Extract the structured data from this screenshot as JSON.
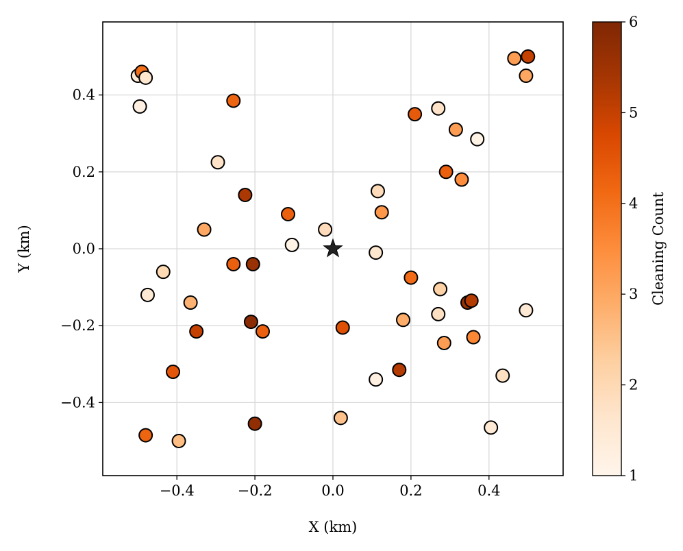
{
  "chart_data": {
    "type": "scatter",
    "title": "",
    "xlabel": "X (km)",
    "ylabel": "Y (km)",
    "xlim": [
      -0.59,
      0.59
    ],
    "ylim": [
      -0.59,
      0.59
    ],
    "xticks": [
      -0.4,
      -0.2,
      0.0,
      0.2,
      0.4
    ],
    "yticks": [
      -0.4,
      -0.2,
      0.0,
      0.2,
      0.4
    ],
    "xtick_labels": [
      "−0.4",
      "−0.2",
      "0.0",
      "0.2",
      "0.4"
    ],
    "ytick_labels": [
      "−0.4",
      "−0.2",
      "0.0",
      "0.2",
      "0.4"
    ],
    "grid": true,
    "colormap": "Oranges",
    "colormap_stops": [
      "#fff5eb",
      "#fee6ce",
      "#fdd0a2",
      "#fdae6b",
      "#fd8d3c",
      "#f16913",
      "#d94801",
      "#a63603",
      "#7f2704"
    ],
    "colorbar": {
      "label": "Cleaning Count",
      "min": 1,
      "max": 6,
      "ticks": [
        1,
        2,
        3,
        4,
        5,
        6
      ],
      "tick_labels": [
        "1",
        "2",
        "3",
        "4",
        "5",
        "6"
      ]
    },
    "center_marker": {
      "x": 0.0,
      "y": 0.0,
      "symbol": "star",
      "color": "#222222"
    },
    "points": [
      {
        "x": -0.5,
        "y": 0.45,
        "count": 1.5
      },
      {
        "x": -0.49,
        "y": 0.46,
        "count": 4.0
      },
      {
        "x": -0.48,
        "y": 0.445,
        "count": 1.6
      },
      {
        "x": -0.495,
        "y": 0.37,
        "count": 1.2
      },
      {
        "x": -0.255,
        "y": 0.385,
        "count": 4.2
      },
      {
        "x": -0.295,
        "y": 0.225,
        "count": 1.7
      },
      {
        "x": -0.225,
        "y": 0.14,
        "count": 5.3
      },
      {
        "x": -0.115,
        "y": 0.09,
        "count": 4.3
      },
      {
        "x": -0.33,
        "y": 0.05,
        "count": 3.0
      },
      {
        "x": -0.255,
        "y": -0.04,
        "count": 4.3
      },
      {
        "x": -0.205,
        "y": -0.04,
        "count": 5.6
      },
      {
        "x": -0.435,
        "y": -0.06,
        "count": 2.0
      },
      {
        "x": -0.475,
        "y": -0.12,
        "count": 1.5
      },
      {
        "x": -0.365,
        "y": -0.14,
        "count": 2.8
      },
      {
        "x": -0.35,
        "y": -0.215,
        "count": 5.0
      },
      {
        "x": -0.21,
        "y": -0.19,
        "count": 5.8
      },
      {
        "x": -0.18,
        "y": -0.215,
        "count": 4.3
      },
      {
        "x": -0.41,
        "y": -0.32,
        "count": 4.5
      },
      {
        "x": -0.2,
        "y": -0.455,
        "count": 5.7
      },
      {
        "x": -0.48,
        "y": -0.485,
        "count": 4.2
      },
      {
        "x": -0.395,
        "y": -0.5,
        "count": 2.6
      },
      {
        "x": -0.105,
        "y": 0.01,
        "count": 1.1
      },
      {
        "x": -0.02,
        "y": 0.05,
        "count": 1.9
      },
      {
        "x": 0.115,
        "y": 0.15,
        "count": 1.9
      },
      {
        "x": 0.125,
        "y": 0.095,
        "count": 3.3
      },
      {
        "x": 0.11,
        "y": -0.01,
        "count": 1.6
      },
      {
        "x": 0.2,
        "y": -0.075,
        "count": 4.1
      },
      {
        "x": 0.025,
        "y": -0.205,
        "count": 4.6
      },
      {
        "x": 0.18,
        "y": -0.185,
        "count": 2.9
      },
      {
        "x": 0.11,
        "y": -0.34,
        "count": 1.2
      },
      {
        "x": 0.17,
        "y": -0.315,
        "count": 5.2
      },
      {
        "x": 0.02,
        "y": -0.44,
        "count": 2.5
      },
      {
        "x": 0.21,
        "y": 0.35,
        "count": 4.4
      },
      {
        "x": 0.27,
        "y": 0.365,
        "count": 1.7
      },
      {
        "x": 0.315,
        "y": 0.31,
        "count": 3.2
      },
      {
        "x": 0.37,
        "y": 0.285,
        "count": 1.1
      },
      {
        "x": 0.29,
        "y": 0.2,
        "count": 4.3
      },
      {
        "x": 0.33,
        "y": 0.18,
        "count": 3.5
      },
      {
        "x": 0.275,
        "y": -0.105,
        "count": 2.2
      },
      {
        "x": 0.27,
        "y": -0.17,
        "count": 1.8
      },
      {
        "x": 0.345,
        "y": -0.14,
        "count": 5.6
      },
      {
        "x": 0.355,
        "y": -0.135,
        "count": 5.2
      },
      {
        "x": 0.285,
        "y": -0.245,
        "count": 3.2
      },
      {
        "x": 0.36,
        "y": -0.23,
        "count": 3.6
      },
      {
        "x": 0.435,
        "y": -0.33,
        "count": 1.8
      },
      {
        "x": 0.405,
        "y": -0.465,
        "count": 1.5
      },
      {
        "x": 0.495,
        "y": -0.16,
        "count": 1.5
      },
      {
        "x": 0.465,
        "y": 0.495,
        "count": 3.2
      },
      {
        "x": 0.5,
        "y": 0.5,
        "count": 5.0
      },
      {
        "x": 0.495,
        "y": 0.45,
        "count": 3.0
      }
    ]
  }
}
